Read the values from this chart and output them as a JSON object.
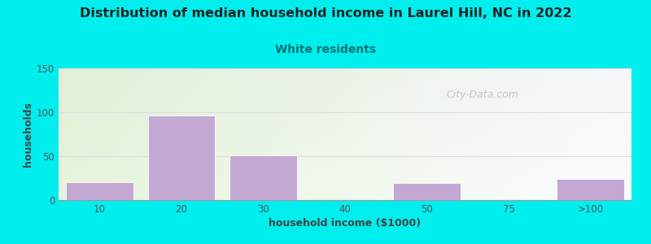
{
  "title": "Distribution of median household income in Laurel Hill, NC in 2022",
  "subtitle": "White residents",
  "xlabel": "household income ($1000)",
  "ylabel": "households",
  "background_color": "#00EEEE",
  "bar_color": "#C4A8D4",
  "bar_edge_color": "white",
  "categories": [
    "10",
    "20",
    "30",
    "40",
    "50",
    "75",
    ">100"
  ],
  "values": [
    20,
    96,
    51,
    0,
    19,
    0,
    24
  ],
  "ylim": [
    0,
    150
  ],
  "yticks": [
    0,
    50,
    100,
    150
  ],
  "title_fontsize": 11.5,
  "subtitle_fontsize": 10,
  "subtitle_color": "#007070",
  "axis_label_fontsize": 9,
  "tick_fontsize": 8.5,
  "watermark": "City-Data.com",
  "grid_color": "#DDDDDD",
  "plot_bg_topleft": [
    0.88,
    0.94,
    0.84
  ],
  "plot_bg_topright": [
    0.97,
    0.97,
    0.99
  ],
  "plot_bg_bottomleft": [
    0.9,
    0.96,
    0.86
  ],
  "plot_bg_bottomright": [
    0.99,
    0.99,
    1.0
  ]
}
